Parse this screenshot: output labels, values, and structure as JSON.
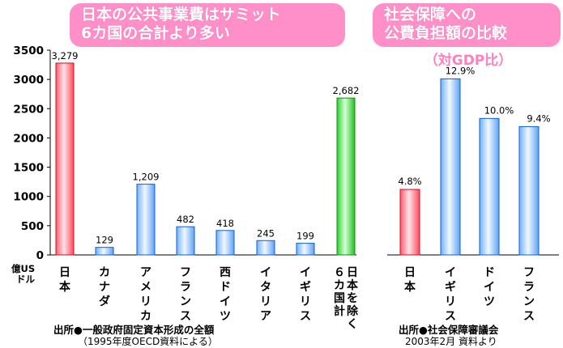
{
  "banner_left": {
    "line1": "日本の公共事業費はサミット",
    "line2": "6カ国の合計より多い"
  },
  "banner_right": {
    "line1": "社会保障への",
    "line2": "公費負担額の比較"
  },
  "subtitle_right": "（対GDP比）",
  "yaxis_unit": [
    "億US",
    "ドル"
  ],
  "source_left": {
    "label": "出所●一般政府固定資本形成の全額",
    "sub": "（1995年度OECD資料による）"
  },
  "source_right": {
    "label": "出所●社会保障審議会",
    "sub": "2003年2月 資料より"
  },
  "chart_data": [
    {
      "type": "bar",
      "categories": [
        "日本",
        "カナダ",
        "アメリカ",
        "フランス",
        "西ドイツ",
        "イタリア",
        "イギリス",
        "日本を除く6カ国計"
      ],
      "category_label_lines": [
        [
          "日",
          "本"
        ],
        [
          "カ",
          "ナ",
          "ダ"
        ],
        [
          "ア",
          "メ",
          "リ",
          "カ"
        ],
        [
          "フ",
          "ラ",
          "ン",
          "ス"
        ],
        [
          "西",
          "ド",
          "イ",
          "ツ"
        ],
        [
          "イ",
          "タ",
          "リ",
          "ア"
        ],
        [
          "イ",
          "ギ",
          "リ",
          "ス"
        ],
        [
          [
            "６",
            "カ",
            "国",
            "計"
          ],
          [
            "日",
            "本",
            "を",
            "除",
            "く"
          ]
        ]
      ],
      "values": [
        3279,
        129,
        1209,
        482,
        418,
        245,
        199,
        2682
      ],
      "data_labels": [
        "3,279",
        "129",
        "1,209",
        "482",
        "418",
        "245",
        "199",
        "2,682"
      ],
      "bar_colors": [
        "red",
        "blue",
        "blue",
        "blue",
        "blue",
        "blue",
        "blue",
        "green"
      ],
      "yticks": [
        "0",
        "500",
        "1000",
        "1500",
        "2000",
        "2500",
        "3000",
        "3500"
      ],
      "ylim": [
        0,
        3500
      ]
    },
    {
      "type": "bar",
      "categories": [
        "日本",
        "イギリス",
        "ドイツ",
        "フランス"
      ],
      "category_label_lines": [
        [
          "日",
          "本"
        ],
        [
          "イ",
          "ギ",
          "リ",
          "ス"
        ],
        [
          "ド",
          "イ",
          "ツ"
        ],
        [
          "フ",
          "ラ",
          "ン",
          "ス"
        ]
      ],
      "values": [
        4.8,
        12.9,
        10.0,
        9.4
      ],
      "data_labels": [
        "4.8%",
        "12.9%",
        "10.0%",
        "9.4%"
      ],
      "bar_colors": [
        "red",
        "blue",
        "blue",
        "blue"
      ],
      "ylim": [
        0,
        15
      ]
    }
  ]
}
